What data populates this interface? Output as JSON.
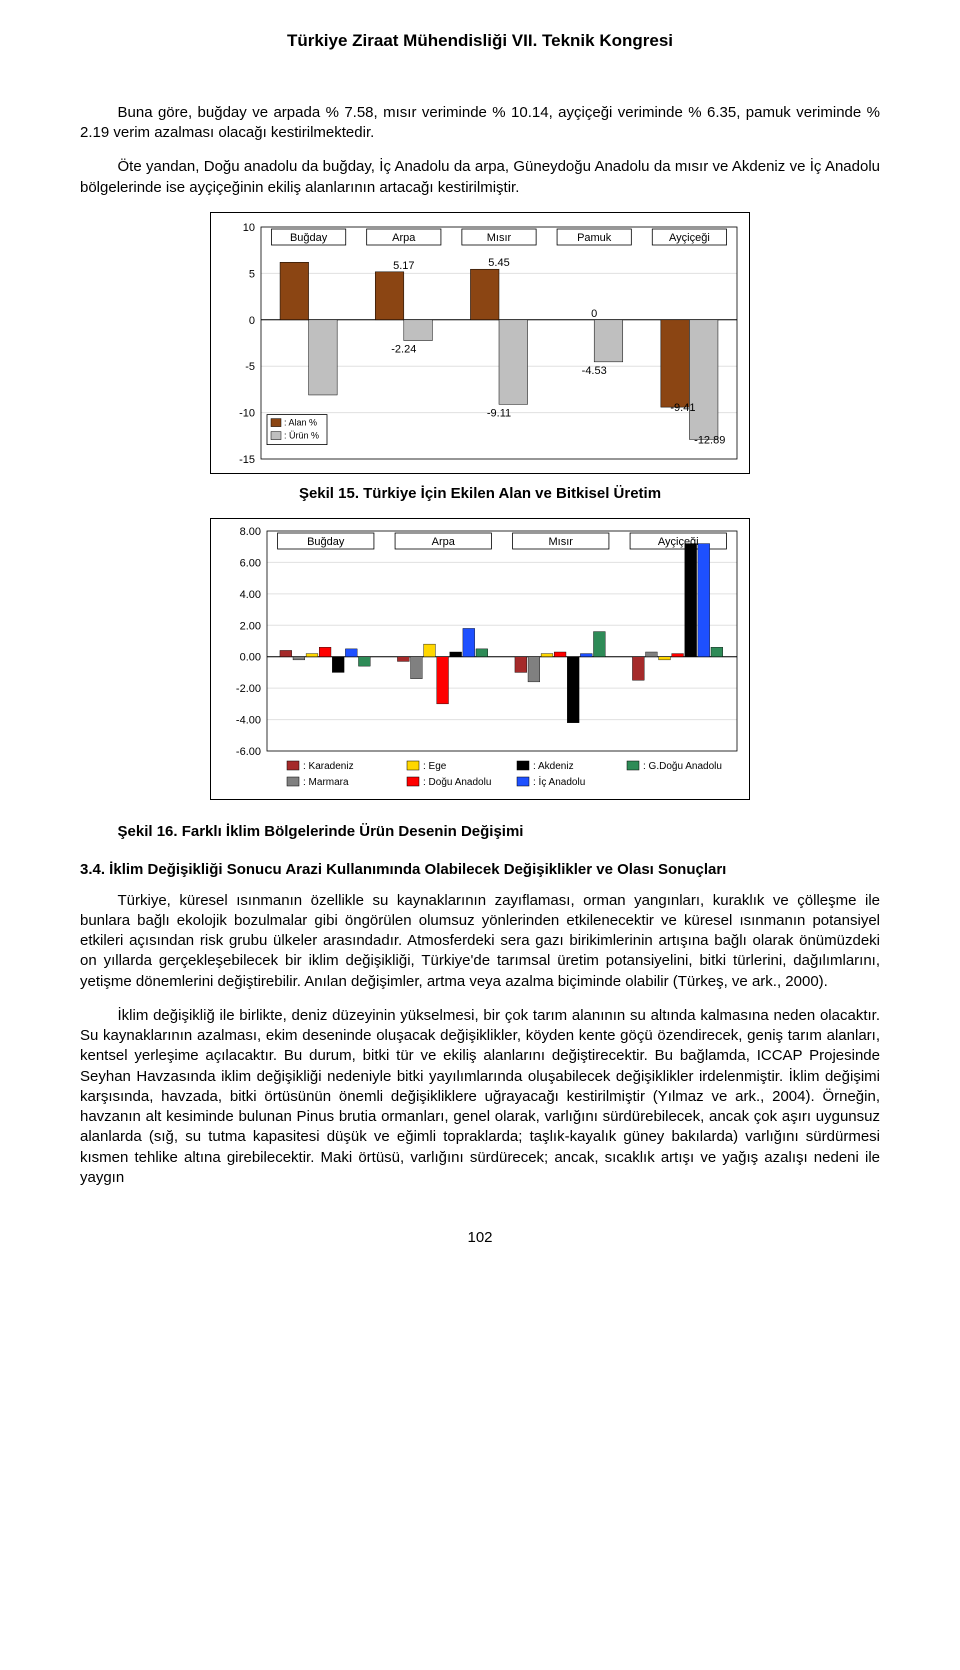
{
  "header": "Türkiye Ziraat Mühendisliği VII. Teknik Kongresi",
  "para1": "Buna göre, buğday ve arpada % 7.58, mısır veriminde % 10.14, ayçiçeği veriminde % 6.35, pamuk veriminde % 2.19 verim azalması olacağı kestirilmektedir.",
  "para2": "Öte yandan, Doğu anadolu da buğday, İç Anadolu da arpa, Güneydoğu Anadolu da mısır ve Akdeniz ve İç Anadolu bölgelerinde ise ayçiçeğinin ekiliş alanlarının artacağı kestirilmiştir.",
  "chart1": {
    "type": "bar-grouped",
    "categories": [
      "Buğday",
      "Arpa",
      "Mısır",
      "Pamuk",
      "Ayçiçeği"
    ],
    "series": [
      {
        "name": "Alan %",
        "color": "#8b4513",
        "values": [
          6.2,
          5.17,
          5.45,
          0.0,
          -9.41
        ]
      },
      {
        "name": "Ürün %",
        "color": "#bfbfbf",
        "values": [
          -8.1,
          -2.24,
          -9.11,
          -4.53,
          -12.89
        ]
      }
    ],
    "value_labels": {
      "Buğday_urun": "-8.10",
      "Arpa_alan": "5.17",
      "Arpa_urun": "-2.24",
      "Misir_alan": "5.45",
      "Misir_urun": "-9.11",
      "Pamuk_alan": "0",
      "Pamuk_urun": "-4.53",
      "Aycicegi_alan": "-9.41",
      "Aycicegi_urun": "-12.89"
    },
    "ylim": [
      -15,
      10
    ],
    "yticks": [
      -15,
      -10,
      -5,
      0,
      5,
      10
    ],
    "legend_box": [
      "Alan %",
      "Ürün %"
    ],
    "bg": "#ffffff",
    "grid": "#e0e0e0",
    "border": "#000000",
    "font_size": 11
  },
  "chart1_caption": "Şekil 15. Türkiye İçin Ekilen Alan ve Bitkisel Üretim",
  "chart2": {
    "type": "bar-grouped",
    "categories": [
      "Buğday",
      "Arpa",
      "Mısır",
      "Ayçiçeği"
    ],
    "series_regions": [
      {
        "name": "Karadeniz",
        "color": "#a52a2a"
      },
      {
        "name": "Ege",
        "color": "#ffd700"
      },
      {
        "name": "Akdeniz",
        "color": "#000000"
      },
      {
        "name": "G.Doğu Anadolu",
        "color": "#2e8b57"
      },
      {
        "name": "Marmara",
        "color": "#808080"
      },
      {
        "name": "Doğu Anadolu",
        "color": "#ff0000"
      },
      {
        "name": "İç Anadolu",
        "color": "#1e50ff"
      }
    ],
    "values": {
      "Buğday": {
        "Karadeniz": 0.4,
        "Marmara": -0.2,
        "Ege": 0.2,
        "Doğu Anadolu": 0.6,
        "Akdeniz": -1.0,
        "İç Anadolu": 0.5,
        "G.Doğu Anadolu": -0.6
      },
      "Arpa": {
        "Karadeniz": -0.3,
        "Marmara": -1.4,
        "Ege": 0.8,
        "Doğu Anadolu": -3.0,
        "Akdeniz": 0.3,
        "İç Anadolu": 1.8,
        "G.Doğu Anadolu": 0.5
      },
      "Mısır": {
        "Karadeniz": -1.0,
        "Marmara": -1.6,
        "Ege": 0.2,
        "Doğu Anadolu": 0.3,
        "Akdeniz": -4.2,
        "İç Anadolu": 0.2,
        "G.Doğu Anadolu": 1.6
      },
      "Ayçiçeği": {
        "Karadeniz": -1.5,
        "Marmara": 0.3,
        "Ege": -0.2,
        "Doğu Anadolu": 0.2,
        "Akdeniz": 7.2,
        "İç Anadolu": 7.2,
        "G.Doğu Anadolu": 0.6
      }
    },
    "ylim": [
      -6,
      8
    ],
    "yticks": [
      -6,
      -4,
      -2,
      0,
      2,
      4,
      6,
      8
    ],
    "ytick_labels": [
      "-6.00",
      "-4.00",
      "-2.00",
      "0.00",
      "2.00",
      "4.00",
      "6.00",
      "8.00"
    ],
    "bg": "#ffffff",
    "grid": "#e0e0e0",
    "border": "#000000",
    "font_size": 11,
    "legend_cols": 4,
    "legend_order": [
      "Karadeniz",
      "Ege",
      "Akdeniz",
      "G.Doğu Anadolu",
      "Marmara",
      "Doğu Anadolu",
      "İç Anadolu"
    ]
  },
  "chart2_caption": "Şekil 16. Farklı İklim Bölgelerinde Ürün Desenin Değişimi",
  "section_h": "3.4. İklim Değişikliği Sonucu Arazi Kullanımında Olabilecek Değişiklikler ve Olası Sonuçları",
  "para3": "Türkiye, küresel ısınmanın özellikle su kaynaklarının zayıflaması, orman yangınları, kuraklık ve çölleşme ile bunlara bağlı ekolojik bozulmalar gibi öngörülen olumsuz yönlerinden etkilenecektir ve küresel ısınmanın potansiyel etkileri açısından risk grubu ülkeler arasındadır. Atmosferdeki sera gazı birikimlerinin artışına bağlı olarak önümüzdeki on yıllarda gerçekleşebilecek bir iklim değişikliği, Türkiye'de tarımsal üretim potansiyelini, bitki türlerini, dağılımlarını, yetişme dönemlerini değiştirebilir. Anılan değişimler, artma veya azalma biçiminde olabilir (Türkeş, ve ark., 2000).",
  "para4": "İklim değişikliğ ile birlikte, deniz düzeyinin yükselmesi, bir çok tarım alanının su altında kalmasına neden olacaktır. Su kaynaklarının azalması, ekim deseninde oluşacak değişiklikler, köyden kente göçü özendirecek, geniş tarım alanları, kentsel yerleşime açılacaktır. Bu durum, bitki tür ve ekiliş alanlarını değiştirecektir. Bu bağlamda, ICCAP Projesinde Seyhan Havzasında iklim değişikliği nedeniyle bitki yayılımlarında oluşabilecek değişiklikler irdelenmiştir. İklim değişimi karşısında, havzada, bitki örtüsünün önemli değişikliklere uğrayacağı kestirilmiştir (Yılmaz ve ark., 2004). Örneğin, havzanın alt kesiminde bulunan Pinus brutia ormanları, genel olarak, varlığını sürdürebilecek, ancak çok aşırı uygunsuz alanlarda (sığ, su tutma kapasitesi düşük ve eğimli topraklarda; taşlık-kayalık güney bakılarda) varlığını sürdürmesi kısmen tehlike altına girebilecektir. Maki örtüsü, varlığını sürdürecek; ancak, sıcaklık artışı ve yağış azalışı nedeni ile yaygın",
  "page_number": "102"
}
